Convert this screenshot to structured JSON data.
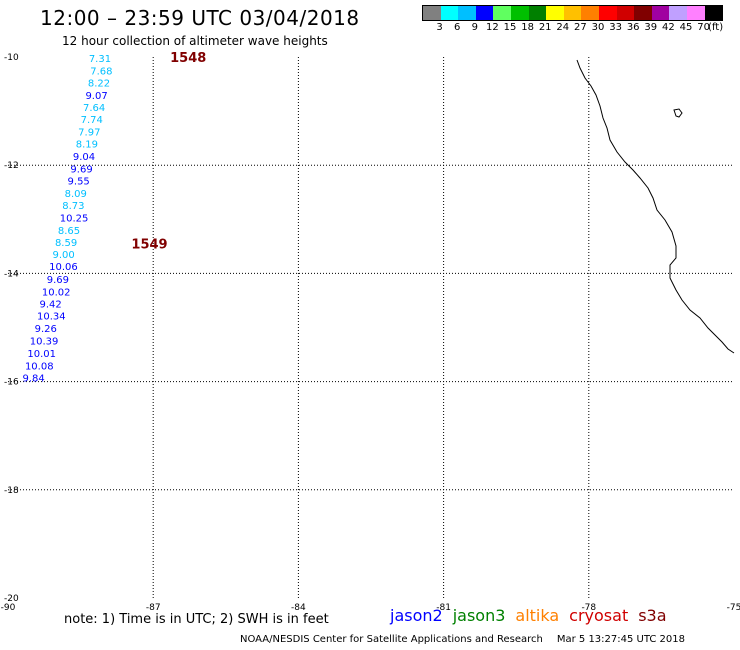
{
  "header": {
    "title": "12:00 – 23:59 UTC 03/04/2018",
    "subtitle": "12 hour collection of altimeter wave heights"
  },
  "colorbar": {
    "colors": [
      "#808080",
      "#00ffff",
      "#00bfff",
      "#0000ff",
      "#60ff60",
      "#00c000",
      "#008000",
      "#ffff00",
      "#ffc000",
      "#ff8000",
      "#ff0000",
      "#d00000",
      "#800000",
      "#a000a0",
      "#c0a0ff",
      "#ff80ff",
      "#000000"
    ],
    "labels": [
      "3",
      "6",
      "9",
      "12",
      "15",
      "18",
      "21",
      "24",
      "27",
      "30",
      "33",
      "36",
      "39",
      "42",
      "45",
      "70"
    ],
    "unit": "(ft)"
  },
  "map": {
    "lon_range": [
      -90,
      -75
    ],
    "lat_range": [
      -20,
      -10
    ],
    "x_ticks": [
      "-90",
      "-87",
      "-84",
      "-81",
      "-78",
      "-75"
    ],
    "y_ticks": [
      "-10",
      "-12",
      "-14",
      "-16",
      "-18",
      "-20"
    ],
    "time_labels": [
      {
        "text": "1548",
        "lon": -86.65,
        "lat": -10.0
      },
      {
        "text": "1549",
        "lon": -87.45,
        "lat": -13.45
      }
    ],
    "measurements": [
      {
        "v": "7.31",
        "lon": -88.33,
        "lat": -10.02,
        "c": "#00bfff"
      },
      {
        "v": "7.68",
        "lon": -88.3,
        "lat": -10.25,
        "c": "#00bfff"
      },
      {
        "v": "8.22",
        "lon": -88.35,
        "lat": -10.47,
        "c": "#00bfff"
      },
      {
        "v": "9.07",
        "lon": -88.4,
        "lat": -10.7,
        "c": "#0000ff"
      },
      {
        "v": "7.64",
        "lon": -88.45,
        "lat": -10.92,
        "c": "#00bfff"
      },
      {
        "v": "7.74",
        "lon": -88.5,
        "lat": -11.15,
        "c": "#00bfff"
      },
      {
        "v": "7.97",
        "lon": -88.55,
        "lat": -11.38,
        "c": "#00bfff"
      },
      {
        "v": "8.19",
        "lon": -88.6,
        "lat": -11.6,
        "c": "#00bfff"
      },
      {
        "v": "9.04",
        "lon": -88.66,
        "lat": -11.83,
        "c": "#0000ff"
      },
      {
        "v": "9.69",
        "lon": -88.71,
        "lat": -12.06,
        "c": "#0000ff"
      },
      {
        "v": "9.55",
        "lon": -88.77,
        "lat": -12.28,
        "c": "#0000ff"
      },
      {
        "v": "8.09",
        "lon": -88.83,
        "lat": -12.51,
        "c": "#00bfff"
      },
      {
        "v": "8.73",
        "lon": -88.88,
        "lat": -12.74,
        "c": "#00bfff"
      },
      {
        "v": "10.25",
        "lon": -88.93,
        "lat": -12.97,
        "c": "#0000ff"
      },
      {
        "v": "8.65",
        "lon": -88.97,
        "lat": -13.2,
        "c": "#00bfff"
      },
      {
        "v": "8.59",
        "lon": -89.03,
        "lat": -13.42,
        "c": "#00bfff"
      },
      {
        "v": "9.00",
        "lon": -89.08,
        "lat": -13.64,
        "c": "#00bfff"
      },
      {
        "v": "10.06",
        "lon": -89.15,
        "lat": -13.86,
        "c": "#0000ff"
      },
      {
        "v": "9.69",
        "lon": -89.2,
        "lat": -14.1,
        "c": "#0000ff"
      },
      {
        "v": "10.02",
        "lon": -89.3,
        "lat": -14.33,
        "c": "#0000ff"
      },
      {
        "v": "9.42",
        "lon": -89.35,
        "lat": -14.56,
        "c": "#0000ff"
      },
      {
        "v": "10.34",
        "lon": -89.4,
        "lat": -14.78,
        "c": "#0000ff"
      },
      {
        "v": "9.26",
        "lon": -89.45,
        "lat": -15.01,
        "c": "#0000ff"
      },
      {
        "v": "10.39",
        "lon": -89.55,
        "lat": -15.24,
        "c": "#0000ff"
      },
      {
        "v": "10.01",
        "lon": -89.6,
        "lat": -15.47,
        "c": "#0000ff"
      },
      {
        "v": "10.08",
        "lon": -89.65,
        "lat": -15.7,
        "c": "#0000ff"
      },
      {
        "v": "9.84",
        "lon": -89.7,
        "lat": -15.92,
        "c": "#0000ff"
      }
    ]
  },
  "footer": {
    "note": "note: 1) Time is in UTC; 2) SWH is in feet",
    "legend": [
      {
        "name": "jason2",
        "color": "#0000ff"
      },
      {
        "name": "jason3",
        "color": "#008000"
      },
      {
        "name": "altika",
        "color": "#ff8000"
      },
      {
        "name": "cryosat",
        "color": "#d00000"
      },
      {
        "name": "s3a",
        "color": "#800000"
      }
    ],
    "credit": "NOAA/NESDIS Center for Satellite Applications and Research",
    "timestamp": "Mar  5 13:27:45 UTC 2018"
  }
}
